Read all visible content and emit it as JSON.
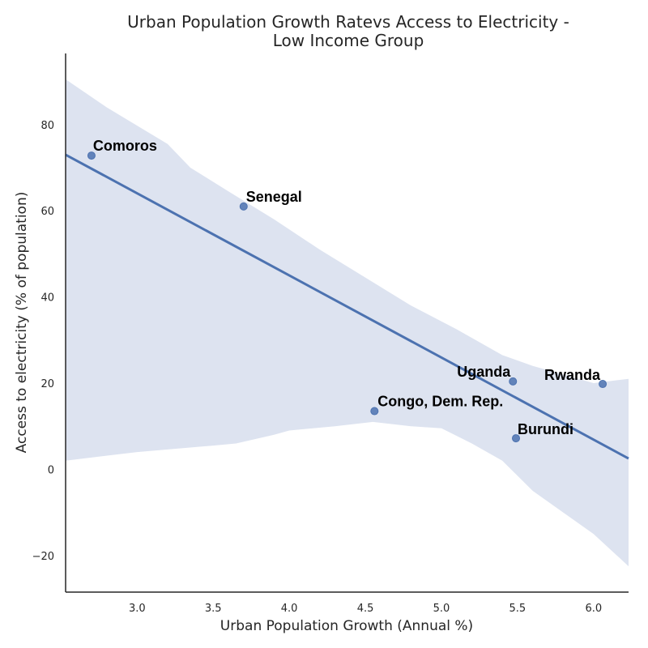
{
  "chart_data": {
    "type": "scatter",
    "title_lines": [
      "Urban Population Growth Ratevs Access to Electricity -",
      "Low Income Group"
    ],
    "xlabel": "Urban Population Growth (Annual %)",
    "ylabel": "Access to electricity (% of population)",
    "xlim": [
      2.53,
      6.23
    ],
    "ylim": [
      -28.5,
      96.5
    ],
    "xticks": [
      3.0,
      3.5,
      4.0,
      4.5,
      5.0,
      5.5,
      6.0
    ],
    "xtick_labels": [
      "3.0",
      "3.5",
      "4.0",
      "4.5",
      "5.0",
      "5.5",
      "6.0"
    ],
    "yticks": [
      -20,
      0,
      20,
      40,
      60,
      80
    ],
    "ytick_labels": [
      "−20",
      "0",
      "20",
      "40",
      "60",
      "80"
    ],
    "grid": false,
    "points": [
      {
        "label": "Comoros",
        "x": 2.7,
        "y": 72.8
      },
      {
        "label": "Senegal",
        "x": 3.7,
        "y": 61.0
      },
      {
        "label": "Congo, Dem. Rep.",
        "x": 4.56,
        "y": 13.5
      },
      {
        "label": "Uganda",
        "x": 5.47,
        "y": 20.4
      },
      {
        "label": "Burundi",
        "x": 5.49,
        "y": 7.2
      },
      {
        "label": "Rwanda",
        "x": 6.06,
        "y": 19.8
      }
    ],
    "regression": {
      "x": [
        2.53,
        6.23
      ],
      "y": [
        73.0,
        2.5
      ],
      "ci_upper": [
        [
          2.53,
          90.5
        ],
        [
          2.8,
          84.0
        ],
        [
          3.2,
          75.5
        ],
        [
          3.35,
          70.0
        ],
        [
          3.6,
          64.5
        ],
        [
          3.9,
          58.0
        ],
        [
          4.2,
          51.0
        ],
        [
          4.5,
          44.5
        ],
        [
          4.8,
          38.0
        ],
        [
          5.1,
          32.5
        ],
        [
          5.4,
          26.5
        ],
        [
          5.6,
          24.0
        ],
        [
          5.8,
          22.0
        ],
        [
          6.0,
          20.0
        ],
        [
          6.23,
          21.0
        ]
      ],
      "ci_lower": [
        [
          2.53,
          2.0
        ],
        [
          3.0,
          4.0
        ],
        [
          3.5,
          5.5
        ],
        [
          3.65,
          6.0
        ],
        [
          3.9,
          8.0
        ],
        [
          4.0,
          9.0
        ],
        [
          4.3,
          10.0
        ],
        [
          4.55,
          11.0
        ],
        [
          4.8,
          10.0
        ],
        [
          5.0,
          9.5
        ],
        [
          5.2,
          6.0
        ],
        [
          5.4,
          2.0
        ],
        [
          5.6,
          -5.0
        ],
        [
          5.8,
          -10.0
        ],
        [
          6.0,
          -15.0
        ],
        [
          6.23,
          -22.5
        ]
      ],
      "color": "#4c72b0",
      "ci_color": "#dde3f0"
    },
    "point_color": "#4c72b0"
  }
}
